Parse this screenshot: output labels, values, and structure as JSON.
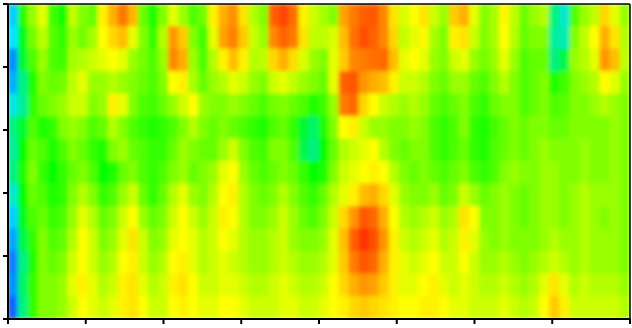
{
  "chart_data": {
    "type": "heatmap",
    "title": "",
    "xlabel": "",
    "ylabel": "",
    "x_tick_count": 9,
    "y_tick_count": 6,
    "tick_labels_shown": false,
    "colormap": [
      "#1010ff",
      "#00e5ff",
      "#00ff00",
      "#ffff00",
      "#ff7a00",
      "#ff2000"
    ],
    "colorbar_shown": false,
    "grid": false,
    "rows": 14,
    "cols": 62,
    "values": [
      [
        0.18,
        0.43,
        0.52,
        0.58,
        0.45,
        0.41,
        0.55,
        0.5,
        0.48,
        0.62,
        0.72,
        0.81,
        0.71,
        0.48,
        0.42,
        0.5,
        0.58,
        0.52,
        0.46,
        0.49,
        0.62,
        0.72,
        0.77,
        0.64,
        0.54,
        0.5,
        0.86,
        0.92,
        0.83,
        0.62,
        0.56,
        0.53,
        0.5,
        0.74,
        0.8,
        0.86,
        0.88,
        0.78,
        0.64,
        0.57,
        0.6,
        0.64,
        0.56,
        0.52,
        0.68,
        0.72,
        0.58,
        0.5,
        0.53,
        0.61,
        0.55,
        0.48,
        0.52,
        0.54,
        0.3,
        0.24,
        0.46,
        0.52,
        0.55,
        0.66,
        0.58,
        0.52
      ],
      [
        0.2,
        0.38,
        0.49,
        0.55,
        0.47,
        0.44,
        0.52,
        0.49,
        0.53,
        0.6,
        0.66,
        0.7,
        0.58,
        0.5,
        0.44,
        0.54,
        0.76,
        0.68,
        0.5,
        0.45,
        0.58,
        0.74,
        0.79,
        0.68,
        0.56,
        0.52,
        0.78,
        0.85,
        0.8,
        0.64,
        0.55,
        0.55,
        0.57,
        0.7,
        0.82,
        0.9,
        0.85,
        0.78,
        0.66,
        0.55,
        0.58,
        0.61,
        0.53,
        0.5,
        0.62,
        0.64,
        0.56,
        0.5,
        0.53,
        0.6,
        0.54,
        0.48,
        0.5,
        0.5,
        0.28,
        0.26,
        0.5,
        0.55,
        0.6,
        0.72,
        0.64,
        0.54
      ],
      [
        0.12,
        0.36,
        0.46,
        0.52,
        0.46,
        0.45,
        0.53,
        0.54,
        0.56,
        0.58,
        0.6,
        0.58,
        0.52,
        0.49,
        0.46,
        0.52,
        0.78,
        0.72,
        0.52,
        0.46,
        0.54,
        0.62,
        0.7,
        0.62,
        0.54,
        0.55,
        0.66,
        0.72,
        0.65,
        0.57,
        0.52,
        0.5,
        0.58,
        0.68,
        0.78,
        0.8,
        0.82,
        0.84,
        0.7,
        0.58,
        0.6,
        0.58,
        0.52,
        0.5,
        0.56,
        0.58,
        0.52,
        0.49,
        0.52,
        0.58,
        0.52,
        0.46,
        0.48,
        0.48,
        0.3,
        0.34,
        0.52,
        0.54,
        0.58,
        0.76,
        0.7,
        0.55
      ],
      [
        0.15,
        0.3,
        0.42,
        0.5,
        0.48,
        0.49,
        0.55,
        0.58,
        0.52,
        0.52,
        0.54,
        0.52,
        0.5,
        0.48,
        0.46,
        0.5,
        0.6,
        0.62,
        0.53,
        0.48,
        0.52,
        0.54,
        0.58,
        0.56,
        0.52,
        0.5,
        0.56,
        0.58,
        0.55,
        0.52,
        0.5,
        0.48,
        0.58,
        0.86,
        0.88,
        0.76,
        0.72,
        0.7,
        0.62,
        0.56,
        0.56,
        0.54,
        0.5,
        0.48,
        0.52,
        0.52,
        0.48,
        0.46,
        0.5,
        0.54,
        0.5,
        0.46,
        0.48,
        0.5,
        0.42,
        0.45,
        0.5,
        0.52,
        0.54,
        0.6,
        0.58,
        0.52
      ],
      [
        0.22,
        0.28,
        0.44,
        0.48,
        0.5,
        0.52,
        0.56,
        0.56,
        0.5,
        0.52,
        0.62,
        0.58,
        0.5,
        0.46,
        0.45,
        0.48,
        0.52,
        0.56,
        0.6,
        0.52,
        0.5,
        0.5,
        0.52,
        0.5,
        0.48,
        0.46,
        0.49,
        0.5,
        0.48,
        0.46,
        0.42,
        0.45,
        0.52,
        0.8,
        0.84,
        0.66,
        0.6,
        0.56,
        0.54,
        0.52,
        0.54,
        0.52,
        0.48,
        0.46,
        0.48,
        0.5,
        0.46,
        0.44,
        0.48,
        0.5,
        0.5,
        0.46,
        0.48,
        0.5,
        0.46,
        0.47,
        0.5,
        0.5,
        0.52,
        0.54,
        0.52,
        0.5
      ],
      [
        0.3,
        0.36,
        0.46,
        0.42,
        0.44,
        0.5,
        0.52,
        0.5,
        0.46,
        0.48,
        0.54,
        0.5,
        0.46,
        0.44,
        0.42,
        0.44,
        0.46,
        0.5,
        0.54,
        0.5,
        0.48,
        0.5,
        0.48,
        0.46,
        0.44,
        0.42,
        0.46,
        0.48,
        0.44,
        0.36,
        0.32,
        0.42,
        0.5,
        0.6,
        0.62,
        0.56,
        0.52,
        0.52,
        0.5,
        0.5,
        0.52,
        0.5,
        0.46,
        0.44,
        0.46,
        0.5,
        0.44,
        0.42,
        0.45,
        0.48,
        0.5,
        0.48,
        0.5,
        0.5,
        0.48,
        0.48,
        0.5,
        0.5,
        0.5,
        0.5,
        0.52,
        0.5
      ],
      [
        0.28,
        0.4,
        0.48,
        0.46,
        0.42,
        0.46,
        0.5,
        0.48,
        0.44,
        0.42,
        0.5,
        0.52,
        0.48,
        0.46,
        0.44,
        0.44,
        0.48,
        0.52,
        0.5,
        0.48,
        0.48,
        0.52,
        0.56,
        0.5,
        0.46,
        0.45,
        0.5,
        0.5,
        0.46,
        0.34,
        0.3,
        0.4,
        0.48,
        0.54,
        0.56,
        0.58,
        0.6,
        0.54,
        0.5,
        0.48,
        0.5,
        0.5,
        0.46,
        0.44,
        0.46,
        0.48,
        0.44,
        0.42,
        0.46,
        0.48,
        0.5,
        0.48,
        0.5,
        0.52,
        0.5,
        0.5,
        0.5,
        0.52,
        0.5,
        0.5,
        0.52,
        0.5
      ],
      [
        0.3,
        0.42,
        0.5,
        0.44,
        0.4,
        0.44,
        0.48,
        0.5,
        0.46,
        0.4,
        0.42,
        0.48,
        0.5,
        0.46,
        0.44,
        0.46,
        0.5,
        0.52,
        0.48,
        0.5,
        0.52,
        0.58,
        0.6,
        0.52,
        0.48,
        0.46,
        0.48,
        0.5,
        0.48,
        0.44,
        0.4,
        0.42,
        0.5,
        0.56,
        0.58,
        0.6,
        0.62,
        0.6,
        0.54,
        0.5,
        0.48,
        0.5,
        0.48,
        0.46,
        0.48,
        0.5,
        0.46,
        0.44,
        0.46,
        0.5,
        0.52,
        0.5,
        0.5,
        0.52,
        0.52,
        0.5,
        0.5,
        0.52,
        0.5,
        0.5,
        0.52,
        0.5
      ],
      [
        0.24,
        0.4,
        0.48,
        0.46,
        0.42,
        0.44,
        0.5,
        0.54,
        0.5,
        0.44,
        0.46,
        0.52,
        0.56,
        0.48,
        0.44,
        0.48,
        0.54,
        0.58,
        0.52,
        0.5,
        0.54,
        0.6,
        0.62,
        0.54,
        0.5,
        0.48,
        0.5,
        0.54,
        0.5,
        0.46,
        0.44,
        0.48,
        0.54,
        0.58,
        0.62,
        0.7,
        0.72,
        0.66,
        0.58,
        0.52,
        0.5,
        0.5,
        0.52,
        0.48,
        0.5,
        0.56,
        0.52,
        0.48,
        0.5,
        0.52,
        0.5,
        0.48,
        0.5,
        0.52,
        0.52,
        0.5,
        0.52,
        0.54,
        0.52,
        0.52,
        0.52,
        0.5
      ],
      [
        0.18,
        0.38,
        0.46,
        0.48,
        0.44,
        0.46,
        0.52,
        0.58,
        0.54,
        0.48,
        0.5,
        0.56,
        0.6,
        0.52,
        0.48,
        0.5,
        0.56,
        0.6,
        0.56,
        0.52,
        0.56,
        0.62,
        0.6,
        0.54,
        0.5,
        0.5,
        0.52,
        0.56,
        0.52,
        0.48,
        0.46,
        0.5,
        0.56,
        0.66,
        0.76,
        0.88,
        0.84,
        0.72,
        0.6,
        0.54,
        0.52,
        0.54,
        0.56,
        0.52,
        0.54,
        0.64,
        0.6,
        0.5,
        0.5,
        0.52,
        0.5,
        0.48,
        0.5,
        0.52,
        0.52,
        0.5,
        0.52,
        0.54,
        0.52,
        0.5,
        0.52,
        0.5
      ],
      [
        0.14,
        0.34,
        0.44,
        0.5,
        0.46,
        0.48,
        0.54,
        0.6,
        0.56,
        0.5,
        0.52,
        0.58,
        0.64,
        0.56,
        0.5,
        0.52,
        0.58,
        0.6,
        0.58,
        0.54,
        0.56,
        0.6,
        0.58,
        0.54,
        0.52,
        0.52,
        0.54,
        0.56,
        0.52,
        0.5,
        0.5,
        0.52,
        0.58,
        0.7,
        0.86,
        0.96,
        0.9,
        0.76,
        0.62,
        0.56,
        0.54,
        0.56,
        0.58,
        0.54,
        0.56,
        0.62,
        0.58,
        0.52,
        0.5,
        0.52,
        0.5,
        0.5,
        0.5,
        0.52,
        0.54,
        0.52,
        0.52,
        0.54,
        0.52,
        0.52,
        0.52,
        0.5
      ],
      [
        0.1,
        0.3,
        0.42,
        0.5,
        0.48,
        0.5,
        0.56,
        0.6,
        0.56,
        0.52,
        0.54,
        0.6,
        0.62,
        0.56,
        0.52,
        0.54,
        0.6,
        0.62,
        0.58,
        0.54,
        0.56,
        0.58,
        0.56,
        0.54,
        0.52,
        0.52,
        0.54,
        0.56,
        0.54,
        0.52,
        0.52,
        0.54,
        0.58,
        0.68,
        0.8,
        0.88,
        0.84,
        0.72,
        0.62,
        0.58,
        0.56,
        0.58,
        0.6,
        0.56,
        0.56,
        0.6,
        0.56,
        0.52,
        0.52,
        0.54,
        0.52,
        0.5,
        0.52,
        0.54,
        0.56,
        0.54,
        0.52,
        0.54,
        0.52,
        0.52,
        0.52,
        0.5
      ],
      [
        0.12,
        0.32,
        0.44,
        0.5,
        0.5,
        0.52,
        0.58,
        0.62,
        0.58,
        0.54,
        0.56,
        0.62,
        0.64,
        0.58,
        0.54,
        0.56,
        0.62,
        0.64,
        0.6,
        0.56,
        0.56,
        0.58,
        0.58,
        0.56,
        0.54,
        0.54,
        0.56,
        0.58,
        0.56,
        0.54,
        0.54,
        0.56,
        0.6,
        0.66,
        0.72,
        0.76,
        0.74,
        0.68,
        0.62,
        0.58,
        0.58,
        0.6,
        0.62,
        0.58,
        0.56,
        0.58,
        0.56,
        0.54,
        0.54,
        0.56,
        0.54,
        0.52,
        0.54,
        0.58,
        0.64,
        0.58,
        0.54,
        0.56,
        0.54,
        0.54,
        0.54,
        0.52
      ],
      [
        0.08,
        0.3,
        0.44,
        0.5,
        0.5,
        0.52,
        0.56,
        0.6,
        0.58,
        0.56,
        0.58,
        0.62,
        0.64,
        0.6,
        0.56,
        0.56,
        0.6,
        0.62,
        0.6,
        0.58,
        0.58,
        0.6,
        0.6,
        0.58,
        0.56,
        0.56,
        0.56,
        0.58,
        0.58,
        0.56,
        0.56,
        0.58,
        0.6,
        0.62,
        0.66,
        0.68,
        0.66,
        0.64,
        0.62,
        0.6,
        0.6,
        0.62,
        0.62,
        0.6,
        0.58,
        0.58,
        0.56,
        0.56,
        0.56,
        0.58,
        0.56,
        0.54,
        0.56,
        0.6,
        0.68,
        0.62,
        0.56,
        0.56,
        0.56,
        0.56,
        0.56,
        0.54
      ]
    ]
  }
}
